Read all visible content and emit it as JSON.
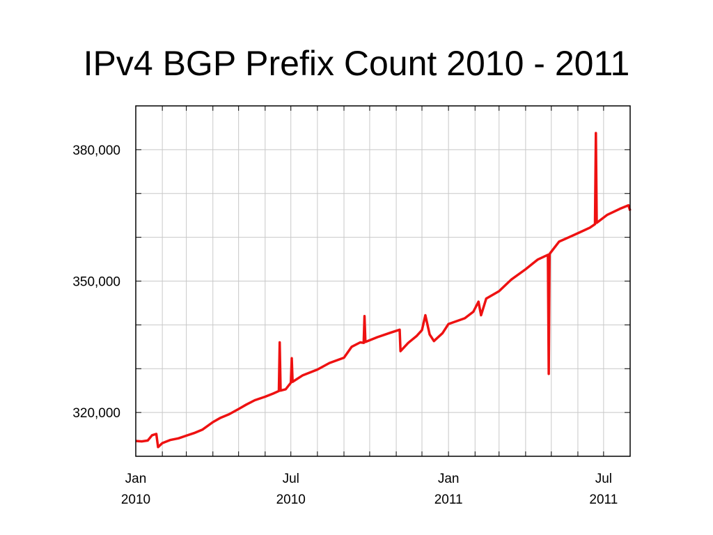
{
  "slide": {
    "title": "IPv4 BGP Prefix Count 2010 - 2011"
  },
  "chart_data": {
    "type": "line",
    "title": "IPv4 BGP Prefix Count 2010 - 2011",
    "xlabel": "",
    "ylabel": "",
    "ylim": [
      310000,
      390000
    ],
    "xlim": [
      "2010-01-01",
      "2011-08-01"
    ],
    "y_ticks": [
      {
        "value": 320000,
        "label": "320,000"
      },
      {
        "value": 350000,
        "label": "350,000"
      },
      {
        "value": 380000,
        "label": "380,000"
      }
    ],
    "x_ticks": [
      {
        "date": "2010-01-01",
        "label": [
          "Jan",
          "2010"
        ]
      },
      {
        "date": "2010-07-01",
        "label": [
          "Jul",
          "2010"
        ]
      },
      {
        "date": "2011-01-01",
        "label": [
          "Jan",
          "2011"
        ]
      },
      {
        "date": "2011-07-01",
        "label": [
          "Jul",
          "2011"
        ]
      }
    ],
    "grid": true,
    "line_color": "#ee1111",
    "series": [
      {
        "name": "",
        "points": [
          [
            "2010-01-01",
            313500
          ],
          [
            "2010-01-08",
            313400
          ],
          [
            "2010-01-15",
            313600
          ],
          [
            "2010-01-20",
            314800
          ],
          [
            "2010-01-25",
            315100
          ],
          [
            "2010-01-27",
            312100
          ],
          [
            "2010-02-01",
            313000
          ],
          [
            "2010-02-10",
            313700
          ],
          [
            "2010-02-20",
            314100
          ],
          [
            "2010-03-01",
            314700
          ],
          [
            "2010-03-10",
            315300
          ],
          [
            "2010-03-20",
            316100
          ],
          [
            "2010-04-01",
            317800
          ],
          [
            "2010-04-10",
            318800
          ],
          [
            "2010-04-20",
            319600
          ],
          [
            "2010-05-01",
            320800
          ],
          [
            "2010-05-10",
            321800
          ],
          [
            "2010-05-20",
            322800
          ],
          [
            "2010-06-01",
            323600
          ],
          [
            "2010-06-10",
            324300
          ],
          [
            "2010-06-17",
            324900
          ],
          [
            "2010-06-18",
            336000
          ],
          [
            "2010-06-19",
            325000
          ],
          [
            "2010-06-25",
            325300
          ],
          [
            "2010-07-01",
            326800
          ],
          [
            "2010-07-02",
            332400
          ],
          [
            "2010-07-03",
            327000
          ],
          [
            "2010-07-15",
            328500
          ],
          [
            "2010-08-01",
            329800
          ],
          [
            "2010-08-15",
            331300
          ],
          [
            "2010-09-01",
            332500
          ],
          [
            "2010-09-10",
            335000
          ],
          [
            "2010-09-20",
            336000
          ],
          [
            "2010-09-24",
            335900
          ],
          [
            "2010-09-25",
            342000
          ],
          [
            "2010-09-26",
            336100
          ],
          [
            "2010-10-10",
            337200
          ],
          [
            "2010-10-25",
            338200
          ],
          [
            "2010-11-05",
            338900
          ],
          [
            "2010-11-06",
            334000
          ],
          [
            "2010-11-15",
            335900
          ],
          [
            "2010-11-25",
            337500
          ],
          [
            "2010-12-01",
            338800
          ],
          [
            "2010-12-05",
            342200
          ],
          [
            "2010-12-10",
            337800
          ],
          [
            "2010-12-15",
            336300
          ],
          [
            "2010-12-25",
            338100
          ],
          [
            "2011-01-01",
            340200
          ],
          [
            "2011-01-20",
            341500
          ],
          [
            "2011-01-30",
            343000
          ],
          [
            "2011-02-05",
            345300
          ],
          [
            "2011-02-08",
            342200
          ],
          [
            "2011-02-14",
            346000
          ],
          [
            "2011-03-01",
            347700
          ],
          [
            "2011-03-15",
            350300
          ],
          [
            "2011-04-01",
            352700
          ],
          [
            "2011-04-15",
            354900
          ],
          [
            "2011-04-27",
            356000
          ],
          [
            "2011-04-28",
            328800
          ],
          [
            "2011-04-29",
            356200
          ],
          [
            "2011-05-10",
            359000
          ],
          [
            "2011-05-25",
            360300
          ],
          [
            "2011-06-05",
            361300
          ],
          [
            "2011-06-15",
            362200
          ],
          [
            "2011-06-21",
            363000
          ],
          [
            "2011-06-22",
            383800
          ],
          [
            "2011-06-23",
            363300
          ],
          [
            "2011-07-05",
            365100
          ],
          [
            "2011-07-20",
            366500
          ],
          [
            "2011-07-30",
            367300
          ],
          [
            "2011-08-01",
            366100
          ]
        ]
      }
    ]
  }
}
